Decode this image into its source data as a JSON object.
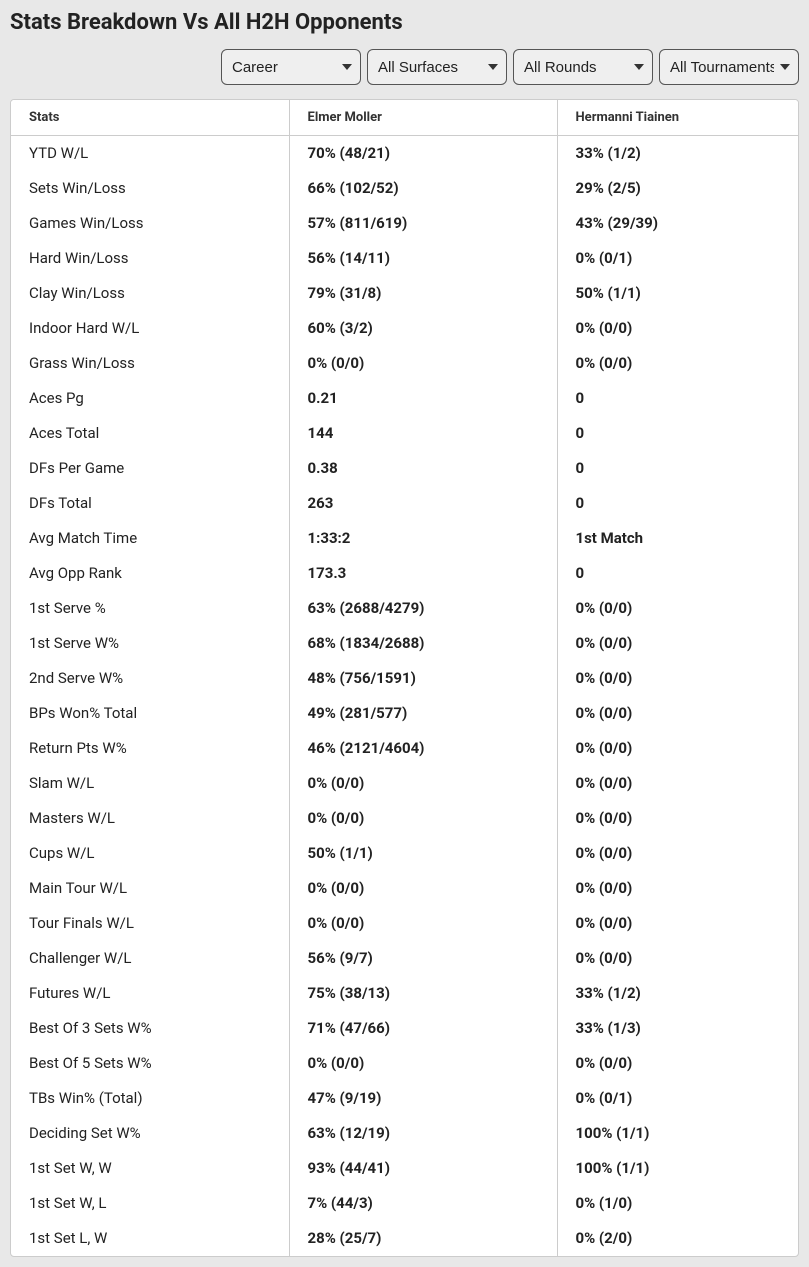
{
  "title": "Stats Breakdown Vs All H2H Opponents",
  "filters": {
    "period": "Career",
    "surface": "All Surfaces",
    "round": "All Rounds",
    "tournament": "All Tournaments"
  },
  "columns": {
    "stats": "Stats",
    "player1": "Elmer Moller",
    "player2": "Hermanni Tiainen"
  },
  "rows": [
    {
      "label": "YTD W/L",
      "p1": "70% (48/21)",
      "p2": "33% (1/2)"
    },
    {
      "label": "Sets Win/Loss",
      "p1": "66% (102/52)",
      "p2": "29% (2/5)"
    },
    {
      "label": "Games Win/Loss",
      "p1": "57% (811/619)",
      "p2": "43% (29/39)"
    },
    {
      "label": "Hard Win/Loss",
      "p1": "56% (14/11)",
      "p2": "0% (0/1)"
    },
    {
      "label": "Clay Win/Loss",
      "p1": "79% (31/8)",
      "p2": "50% (1/1)"
    },
    {
      "label": "Indoor Hard W/L",
      "p1": "60% (3/2)",
      "p2": "0% (0/0)"
    },
    {
      "label": "Grass Win/Loss",
      "p1": "0% (0/0)",
      "p2": "0% (0/0)"
    },
    {
      "label": "Aces Pg",
      "p1": "0.21",
      "p2": "0"
    },
    {
      "label": "Aces Total",
      "p1": "144",
      "p2": "0"
    },
    {
      "label": "DFs Per Game",
      "p1": "0.38",
      "p2": "0"
    },
    {
      "label": "DFs Total",
      "p1": "263",
      "p2": "0"
    },
    {
      "label": "Avg Match Time",
      "p1": "1:33:2",
      "p2": "1st Match"
    },
    {
      "label": "Avg Opp Rank",
      "p1": "173.3",
      "p2": "0"
    },
    {
      "label": "1st Serve %",
      "p1": "63% (2688/4279)",
      "p2": "0% (0/0)"
    },
    {
      "label": "1st Serve W%",
      "p1": "68% (1834/2688)",
      "p2": "0% (0/0)"
    },
    {
      "label": "2nd Serve W%",
      "p1": "48% (756/1591)",
      "p2": "0% (0/0)"
    },
    {
      "label": "BPs Won% Total",
      "p1": "49% (281/577)",
      "p2": "0% (0/0)"
    },
    {
      "label": "Return Pts W%",
      "p1": "46% (2121/4604)",
      "p2": "0% (0/0)"
    },
    {
      "label": "Slam W/L",
      "p1": "0% (0/0)",
      "p2": "0% (0/0)"
    },
    {
      "label": "Masters W/L",
      "p1": "0% (0/0)",
      "p2": "0% (0/0)"
    },
    {
      "label": "Cups W/L",
      "p1": "50% (1/1)",
      "p2": "0% (0/0)"
    },
    {
      "label": "Main Tour W/L",
      "p1": "0% (0/0)",
      "p2": "0% (0/0)"
    },
    {
      "label": "Tour Finals W/L",
      "p1": "0% (0/0)",
      "p2": "0% (0/0)"
    },
    {
      "label": "Challenger W/L",
      "p1": "56% (9/7)",
      "p2": "0% (0/0)"
    },
    {
      "label": "Futures W/L",
      "p1": "75% (38/13)",
      "p2": "33% (1/2)"
    },
    {
      "label": "Best Of 3 Sets W%",
      "p1": "71% (47/66)",
      "p2": "33% (1/3)"
    },
    {
      "label": "Best Of 5 Sets W%",
      "p1": "0% (0/0)",
      "p2": "0% (0/0)"
    },
    {
      "label": "TBs Win% (Total)",
      "p1": "47% (9/19)",
      "p2": "0% (0/1)"
    },
    {
      "label": "Deciding Set W%",
      "p1": "63% (12/19)",
      "p2": "100% (1/1)"
    },
    {
      "label": "1st Set W, W",
      "p1": "93% (44/41)",
      "p2": "100% (1/1)"
    },
    {
      "label": "1st Set W, L",
      "p1": "7% (44/3)",
      "p2": "0% (1/0)"
    },
    {
      "label": "1st Set L, W",
      "p1": "28% (25/7)",
      "p2": "0% (2/0)"
    }
  ]
}
